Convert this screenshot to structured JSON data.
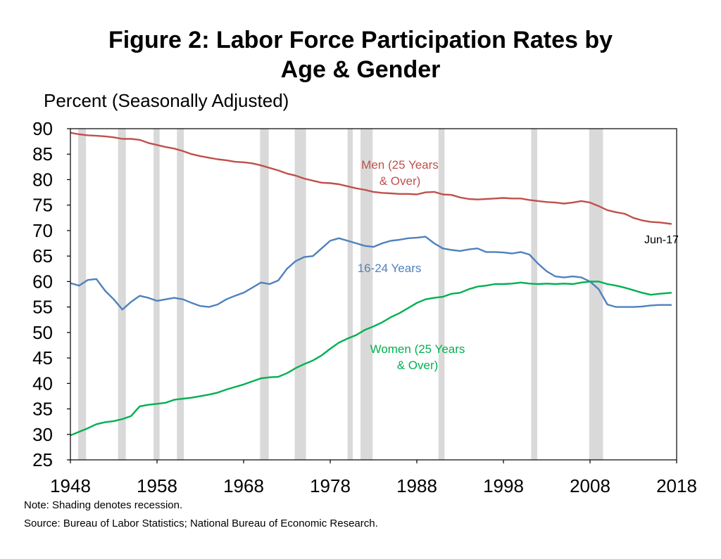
{
  "title_lines": [
    "Figure 2: Labor Force Participation Rates by",
    "Age & Gender"
  ],
  "ylabel": "Percent (Seasonally Adjusted)",
  "note": "Note: Shading denotes recession.",
  "source": "Source: Bureau of Labor Statistics; National Bureau of Economic Research.",
  "chart_data": {
    "type": "line",
    "title": "Figure 2: Labor Force Participation Rates by Age & Gender",
    "ylabel": "Percent (Seasonally Adjusted)",
    "xlabel": "",
    "xlim": [
      1948,
      2018
    ],
    "ylim": [
      25,
      90
    ],
    "yticks": [
      90,
      85,
      80,
      75,
      70,
      65,
      60,
      55,
      50,
      45,
      40,
      35,
      30,
      25
    ],
    "xticks": [
      1948,
      1958,
      1968,
      1978,
      1988,
      1998,
      2008,
      2018
    ],
    "grid": false,
    "legend": "none",
    "recessions": [
      [
        1948.9,
        1949.8
      ],
      [
        1953.5,
        1954.4
      ],
      [
        1957.6,
        1958.3
      ],
      [
        1960.3,
        1961.1
      ],
      [
        1969.9,
        1970.9
      ],
      [
        1973.9,
        1975.2
      ],
      [
        1980.0,
        1980.6
      ],
      [
        1981.5,
        1982.9
      ],
      [
        1990.5,
        1991.2
      ],
      [
        2001.2,
        2001.9
      ],
      [
        2007.9,
        2009.5
      ]
    ],
    "series": [
      {
        "name": "Men (25 Years & Over)",
        "label_lines": [
          "Men (25 Years",
          "& Over)"
        ],
        "color": "#c0504d",
        "x": [
          1948,
          1949,
          1950,
          1951,
          1952,
          1953,
          1954,
          1955,
          1956,
          1957,
          1958,
          1959,
          1960,
          1961,
          1962,
          1963,
          1964,
          1965,
          1966,
          1967,
          1968,
          1969,
          1970,
          1971,
          1972,
          1973,
          1974,
          1975,
          1976,
          1977,
          1978,
          1979,
          1980,
          1981,
          1982,
          1983,
          1984,
          1985,
          1986,
          1987,
          1988,
          1989,
          1990,
          1991,
          1992,
          1993,
          1994,
          1995,
          1996,
          1997,
          1998,
          1999,
          2000,
          2001,
          2002,
          2003,
          2004,
          2005,
          2006,
          2007,
          2008,
          2009,
          2010,
          2011,
          2012,
          2013,
          2014,
          2015,
          2016,
          2017.42
        ],
        "values": [
          89.2,
          88.9,
          88.7,
          88.6,
          88.5,
          88.3,
          88.0,
          88.0,
          87.8,
          87.2,
          86.8,
          86.4,
          86.1,
          85.6,
          85.0,
          84.6,
          84.3,
          84.0,
          83.8,
          83.5,
          83.4,
          83.2,
          82.8,
          82.3,
          81.8,
          81.2,
          80.8,
          80.2,
          79.8,
          79.4,
          79.3,
          79.1,
          78.7,
          78.3,
          78.0,
          77.6,
          77.4,
          77.3,
          77.2,
          77.2,
          77.1,
          77.5,
          77.6,
          77.1,
          77.0,
          76.5,
          76.2,
          76.1,
          76.2,
          76.3,
          76.4,
          76.3,
          76.3,
          76.0,
          75.8,
          75.6,
          75.5,
          75.3,
          75.5,
          75.8,
          75.5,
          74.8,
          74.0,
          73.6,
          73.3,
          72.5,
          72.0,
          71.7,
          71.6,
          71.3
        ]
      },
      {
        "name": "16-24 Years",
        "label_lines": [
          "16-24  Years"
        ],
        "color": "#4f81bd",
        "x": [
          1948,
          1949,
          1950,
          1951,
          1952,
          1953,
          1954,
          1955,
          1956,
          1957,
          1958,
          1959,
          1960,
          1961,
          1962,
          1963,
          1964,
          1965,
          1966,
          1967,
          1968,
          1969,
          1970,
          1971,
          1972,
          1973,
          1974,
          1975,
          1976,
          1977,
          1978,
          1979,
          1980,
          1981,
          1982,
          1983,
          1984,
          1985,
          1986,
          1987,
          1988,
          1989,
          1990,
          1991,
          1992,
          1993,
          1994,
          1995,
          1996,
          1997,
          1998,
          1999,
          2000,
          2001,
          2002,
          2003,
          2004,
          2005,
          2006,
          2007,
          2008,
          2009,
          2010,
          2011,
          2012,
          2013,
          2014,
          2015,
          2016,
          2017.42
        ],
        "values": [
          59.7,
          59.2,
          60.3,
          60.5,
          58.2,
          56.5,
          54.5,
          56.0,
          57.2,
          56.8,
          56.2,
          56.5,
          56.8,
          56.5,
          55.8,
          55.2,
          55.0,
          55.5,
          56.5,
          57.2,
          57.8,
          58.8,
          59.8,
          59.5,
          60.2,
          62.5,
          64.0,
          64.8,
          65.0,
          66.5,
          68.0,
          68.5,
          68.0,
          67.5,
          67.0,
          66.8,
          67.5,
          68.0,
          68.2,
          68.5,
          68.6,
          68.8,
          67.5,
          66.5,
          66.2,
          66.0,
          66.3,
          66.5,
          65.8,
          65.8,
          65.7,
          65.5,
          65.8,
          65.3,
          63.5,
          62.0,
          61.0,
          60.8,
          61.0,
          60.8,
          60.0,
          58.5,
          55.5,
          55.0,
          55.0,
          55.0,
          55.1,
          55.3,
          55.4,
          55.4
        ]
      },
      {
        "name": "Women (25 Years & Over)",
        "label_lines": [
          "Women  (25  Years",
          "& Over)"
        ],
        "color": "#00b050",
        "x": [
          1948,
          1949,
          1950,
          1951,
          1952,
          1953,
          1954,
          1955,
          1956,
          1957,
          1958,
          1959,
          1960,
          1961,
          1962,
          1963,
          1964,
          1965,
          1966,
          1967,
          1968,
          1969,
          1970,
          1971,
          1972,
          1973,
          1974,
          1975,
          1976,
          1977,
          1978,
          1979,
          1980,
          1981,
          1982,
          1983,
          1984,
          1985,
          1986,
          1987,
          1988,
          1989,
          1990,
          1991,
          1992,
          1993,
          1994,
          1995,
          1996,
          1997,
          1998,
          1999,
          2000,
          2001,
          2002,
          2003,
          2004,
          2005,
          2006,
          2007,
          2008,
          2009,
          2010,
          2011,
          2012,
          2013,
          2014,
          2015,
          2016,
          2017.42
        ],
        "values": [
          29.8,
          30.5,
          31.2,
          32.0,
          32.4,
          32.6,
          33.0,
          33.6,
          35.5,
          35.8,
          36.0,
          36.2,
          36.8,
          37.0,
          37.2,
          37.5,
          37.8,
          38.2,
          38.8,
          39.3,
          39.8,
          40.4,
          41.0,
          41.2,
          41.3,
          42.0,
          43.0,
          43.8,
          44.5,
          45.5,
          46.8,
          48.0,
          48.8,
          49.5,
          50.5,
          51.2,
          52.0,
          53.0,
          53.8,
          54.8,
          55.8,
          56.5,
          56.8,
          57.0,
          57.6,
          57.8,
          58.5,
          59.0,
          59.2,
          59.5,
          59.5,
          59.6,
          59.8,
          59.6,
          59.5,
          59.6,
          59.5,
          59.6,
          59.5,
          59.8,
          60.0,
          60.0,
          59.5,
          59.2,
          58.8,
          58.3,
          57.8,
          57.4,
          57.6,
          57.8
        ]
      }
    ],
    "annotations": [
      {
        "text": "Jun-17",
        "x": 2017.42
      }
    ]
  }
}
